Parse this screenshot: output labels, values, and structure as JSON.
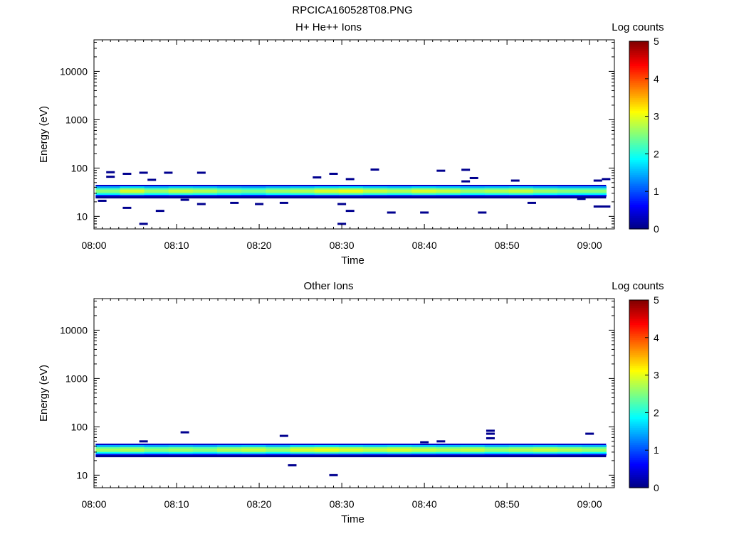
{
  "figure_title": "RPCICA160528T08.PNG",
  "colorbar": {
    "label": "Log counts",
    "ticks": [
      "0",
      "1",
      "2",
      "3",
      "4",
      "5"
    ],
    "colormap": "jet",
    "range": [
      0,
      5
    ]
  },
  "chart_data": [
    {
      "type": "heatmap",
      "title": "H+ He++ Ions",
      "xlabel": "Time",
      "ylabel": "Energy (eV)",
      "y_scale": "log",
      "x_ticks": [
        "08:00",
        "08:10",
        "08:20",
        "08:30",
        "08:40",
        "08:50",
        "09:00"
      ],
      "y_ticks": [
        "10",
        "100",
        "1000",
        "10000"
      ],
      "x_range": [
        "08:00",
        "09:03"
      ],
      "y_range": [
        5.5,
        45000
      ],
      "band": {
        "time_range": [
          "08:00",
          "09:02"
        ],
        "energy_range": [
          26,
          42
        ],
        "max_log_counts": [
          2.6,
          3.0,
          2.7,
          2.9,
          2.8,
          2.6,
          2.5,
          2.7,
          2.8,
          3.0,
          3.1,
          2.9,
          2.8,
          3.0,
          2.9,
          2.7,
          2.8,
          2.9,
          2.7,
          2.6,
          2.6
        ]
      },
      "isolated_counts": [
        {
          "t": "08:02",
          "e": 82
        },
        {
          "t": "08:02",
          "e": 66
        },
        {
          "t": "08:01",
          "e": 21
        },
        {
          "t": "08:04",
          "e": 76
        },
        {
          "t": "08:04",
          "e": 15
        },
        {
          "t": "08:06",
          "e": 80
        },
        {
          "t": "08:07",
          "e": 57
        },
        {
          "t": "08:06",
          "e": 7
        },
        {
          "t": "08:09",
          "e": 80
        },
        {
          "t": "08:08",
          "e": 13
        },
        {
          "t": "08:11",
          "e": 22
        },
        {
          "t": "08:13",
          "e": 80
        },
        {
          "t": "08:13",
          "e": 18
        },
        {
          "t": "08:17",
          "e": 19
        },
        {
          "t": "08:20",
          "e": 18
        },
        {
          "t": "08:23",
          "e": 19
        },
        {
          "t": "08:27",
          "e": 64
        },
        {
          "t": "08:29",
          "e": 76
        },
        {
          "t": "08:30",
          "e": 18
        },
        {
          "t": "08:31",
          "e": 13
        },
        {
          "t": "08:31",
          "e": 59
        },
        {
          "t": "08:30",
          "e": 7
        },
        {
          "t": "08:34",
          "e": 93
        },
        {
          "t": "08:36",
          "e": 12
        },
        {
          "t": "08:40",
          "e": 12
        },
        {
          "t": "08:42",
          "e": 88
        },
        {
          "t": "08:45",
          "e": 92
        },
        {
          "t": "08:45",
          "e": 53
        },
        {
          "t": "08:46",
          "e": 62
        },
        {
          "t": "08:47",
          "e": 12
        },
        {
          "t": "08:51",
          "e": 55
        },
        {
          "t": "08:53",
          "e": 19
        },
        {
          "t": "08:59",
          "e": 23
        },
        {
          "t": "09:01",
          "e": 55
        },
        {
          "t": "09:02",
          "e": 59
        },
        {
          "t": "09:01",
          "e": 16
        },
        {
          "t": "09:02",
          "e": 16
        }
      ]
    },
    {
      "type": "heatmap",
      "title": "Other Ions",
      "xlabel": "Time",
      "ylabel": "Energy (eV)",
      "y_scale": "log",
      "x_ticks": [
        "08:00",
        "08:10",
        "08:20",
        "08:30",
        "08:40",
        "08:50",
        "09:00"
      ],
      "y_ticks": [
        "10",
        "100",
        "1000",
        "10000"
      ],
      "x_range": [
        "08:00",
        "09:03"
      ],
      "y_range": [
        5.5,
        45000
      ],
      "band": {
        "time_range": [
          "08:00",
          "09:02"
        ],
        "energy_range": [
          26,
          42
        ],
        "max_log_counts": [
          2.7,
          2.8,
          2.6,
          2.7,
          2.6,
          2.8,
          2.9,
          2.7,
          3.0,
          3.1,
          3.0,
          2.9,
          3.0,
          2.9,
          2.8,
          2.9,
          2.7,
          2.8,
          2.9,
          2.8,
          2.7
        ]
      },
      "isolated_counts": [
        {
          "t": "08:06",
          "e": 50
        },
        {
          "t": "08:11",
          "e": 77
        },
        {
          "t": "08:23",
          "e": 65
        },
        {
          "t": "08:24",
          "e": 16
        },
        {
          "t": "08:29",
          "e": 10
        },
        {
          "t": "08:40",
          "e": 48
        },
        {
          "t": "08:42",
          "e": 50
        },
        {
          "t": "08:48",
          "e": 83
        },
        {
          "t": "08:48",
          "e": 72
        },
        {
          "t": "08:48",
          "e": 58
        },
        {
          "t": "09:00",
          "e": 72
        }
      ]
    }
  ]
}
